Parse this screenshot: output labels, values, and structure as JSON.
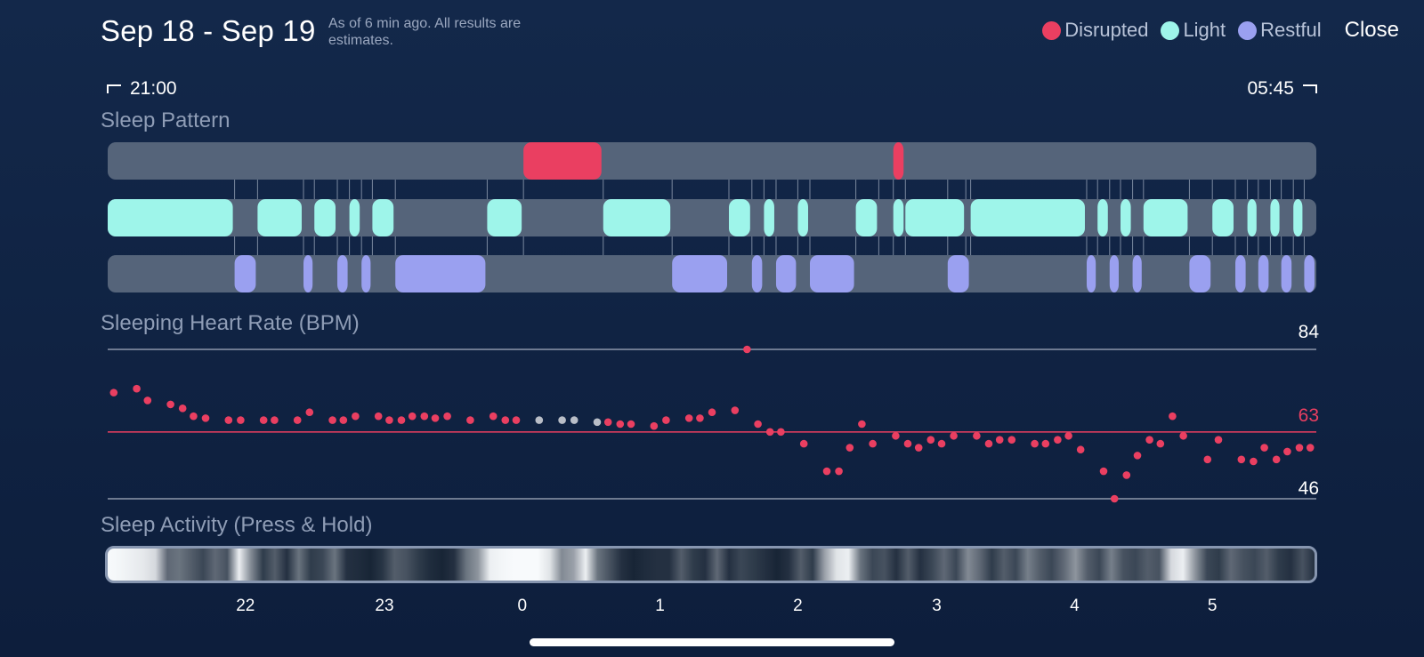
{
  "header": {
    "title": "Sep 18 - Sep 19",
    "note": "As of 6 min ago. All results are estimates.",
    "close_label": "Close"
  },
  "legend": [
    {
      "label": "Disrupted",
      "color": "#ea3f61"
    },
    {
      "label": "Light",
      "color": "#9ef5ea"
    },
    {
      "label": "Restful",
      "color": "#9aa0f0"
    }
  ],
  "time_range": {
    "start": "21:00",
    "end": "05:45"
  },
  "sleep_pattern": {
    "title": "Sleep Pattern",
    "disrupted": [
      [
        0.344,
        0.41
      ],
      [
        0.65,
        0.66
      ]
    ],
    "light": [
      [
        0,
        0.105
      ],
      [
        0.124,
        0.162
      ],
      [
        0.171,
        0.19
      ],
      [
        0.2,
        0.21
      ],
      [
        0.219,
        0.238
      ],
      [
        0.314,
        0.344
      ],
      [
        0.41,
        0.467
      ],
      [
        0.514,
        0.533
      ],
      [
        0.543,
        0.553
      ],
      [
        0.571,
        0.581
      ],
      [
        0.619,
        0.638
      ],
      [
        0.65,
        0.66
      ],
      [
        0.66,
        0.71
      ],
      [
        0.714,
        0.81
      ],
      [
        0.819,
        0.829
      ],
      [
        0.838,
        0.848
      ],
      [
        0.857,
        0.895
      ],
      [
        0.914,
        0.933
      ],
      [
        0.943,
        0.952
      ],
      [
        0.962,
        0.971
      ],
      [
        0.981,
        0.99
      ]
    ],
    "restful": [
      [
        0.105,
        0.124
      ],
      [
        0.162,
        0.171
      ],
      [
        0.19,
        0.2
      ],
      [
        0.21,
        0.219
      ],
      [
        0.238,
        0.314
      ],
      [
        0.467,
        0.514
      ],
      [
        0.533,
        0.543
      ],
      [
        0.553,
        0.571
      ],
      [
        0.581,
        0.619
      ],
      [
        0.695,
        0.714
      ],
      [
        0.81,
        0.819
      ],
      [
        0.829,
        0.838
      ],
      [
        0.848,
        0.857
      ],
      [
        0.895,
        0.914
      ],
      [
        0.933,
        0.943
      ],
      [
        0.952,
        0.962
      ],
      [
        0.971,
        0.981
      ],
      [
        0.99,
        1.0
      ]
    ]
  },
  "heart_rate": {
    "title": "Sleeping Heart Rate (BPM)",
    "max": "84",
    "avg": "63",
    "min": "46",
    "avg_color": "#ea3f61",
    "points": [
      [
        0.005,
        73
      ],
      [
        0.024,
        74
      ],
      [
        0.033,
        71
      ],
      [
        0.052,
        70
      ],
      [
        0.062,
        69
      ],
      [
        0.071,
        67
      ],
      [
        0.081,
        66.5
      ],
      [
        0.1,
        66
      ],
      [
        0.11,
        66
      ],
      [
        0.129,
        66
      ],
      [
        0.138,
        66
      ],
      [
        0.157,
        66
      ],
      [
        0.167,
        68
      ],
      [
        0.186,
        66
      ],
      [
        0.195,
        66
      ],
      [
        0.205,
        67
      ],
      [
        0.224,
        67
      ],
      [
        0.233,
        66
      ],
      [
        0.243,
        66
      ],
      [
        0.252,
        67
      ],
      [
        0.262,
        67
      ],
      [
        0.271,
        66.5
      ],
      [
        0.281,
        67
      ],
      [
        0.3,
        66
      ],
      [
        0.319,
        67
      ],
      [
        0.329,
        66
      ],
      [
        0.338,
        66
      ],
      [
        0.357,
        66,
        "g"
      ],
      [
        0.376,
        66,
        "g"
      ],
      [
        0.386,
        66,
        "g"
      ],
      [
        0.405,
        65.5,
        "g"
      ],
      [
        0.414,
        65.5
      ],
      [
        0.424,
        65
      ],
      [
        0.433,
        65
      ],
      [
        0.452,
        64.5
      ],
      [
        0.462,
        66
      ],
      [
        0.481,
        66.5
      ],
      [
        0.49,
        66.5
      ],
      [
        0.5,
        68
      ],
      [
        0.519,
        68.5
      ],
      [
        0.529,
        84
      ],
      [
        0.538,
        65
      ],
      [
        0.548,
        63
      ],
      [
        0.557,
        63
      ],
      [
        0.576,
        60
      ],
      [
        0.595,
        53
      ],
      [
        0.605,
        53
      ],
      [
        0.614,
        59
      ],
      [
        0.624,
        65
      ],
      [
        0.633,
        60
      ],
      [
        0.652,
        62
      ],
      [
        0.662,
        60
      ],
      [
        0.671,
        59
      ],
      [
        0.681,
        61
      ],
      [
        0.69,
        60
      ],
      [
        0.7,
        62
      ],
      [
        0.719,
        62
      ],
      [
        0.729,
        60
      ],
      [
        0.738,
        61
      ],
      [
        0.748,
        61
      ],
      [
        0.767,
        60
      ],
      [
        0.776,
        60
      ],
      [
        0.786,
        61
      ],
      [
        0.795,
        62
      ],
      [
        0.805,
        58.5
      ],
      [
        0.824,
        53
      ],
      [
        0.833,
        46
      ],
      [
        0.843,
        52
      ],
      [
        0.852,
        57
      ],
      [
        0.862,
        61
      ],
      [
        0.871,
        60
      ],
      [
        0.881,
        67
      ],
      [
        0.89,
        62
      ],
      [
        0.91,
        56
      ],
      [
        0.919,
        61
      ],
      [
        0.938,
        56
      ],
      [
        0.948,
        55.5
      ],
      [
        0.957,
        59
      ],
      [
        0.967,
        56
      ],
      [
        0.976,
        58
      ],
      [
        0.986,
        59
      ],
      [
        0.995,
        59
      ]
    ]
  },
  "sleep_activity": {
    "title": "Sleep Activity (Press & Hold)",
    "levels": [
      1,
      0.98,
      0.95,
      0.92,
      0.85,
      0.35,
      0.4,
      0.3,
      0.2,
      0.35,
      0.25,
      0.95,
      0.5,
      0.15,
      0.3,
      0.1,
      0.4,
      0.15,
      0.2,
      0.4,
      0.1,
      0.08,
      0.05,
      0.12,
      0.3,
      0.25,
      0.15,
      0.08,
      0.05,
      0.1,
      0.4,
      0.55,
      0.95,
      0.98,
      1,
      1,
      1,
      0.9,
      0.5,
      0.6,
      0.95,
      0.4,
      0.25,
      0.1,
      0.05,
      0.08,
      0.1,
      0.1,
      0.3,
      0.15,
      0.1,
      0.35,
      0.1,
      0.2,
      0.15,
      0.1,
      0.05,
      0.1,
      0.3,
      0.15,
      0.6,
      0.9,
      0.95,
      0.4,
      0.2,
      0.25,
      0.1,
      0.3,
      0.1,
      0.2,
      0.35,
      0.2,
      0.5,
      0.35,
      0.15,
      0.3,
      0.2,
      0.45,
      0.3,
      0.2,
      0.35,
      0.55,
      0.3,
      0.2,
      0.45,
      0.25,
      0.2,
      0.3,
      0.25,
      0.85,
      0.95,
      0.55,
      0.2,
      0.15,
      0.35,
      0.25,
      0.2,
      0.3,
      0.15,
      0.1,
      0.25,
      0.1
    ],
    "hour_labels": [
      {
        "label": "22",
        "t": 0.114
      },
      {
        "label": "23",
        "t": 0.229
      },
      {
        "label": "0",
        "t": 0.343
      },
      {
        "label": "1",
        "t": 0.457
      },
      {
        "label": "2",
        "t": 0.571
      },
      {
        "label": "3",
        "t": 0.686
      },
      {
        "label": "4",
        "t": 0.8
      },
      {
        "label": "5",
        "t": 0.914
      }
    ]
  }
}
